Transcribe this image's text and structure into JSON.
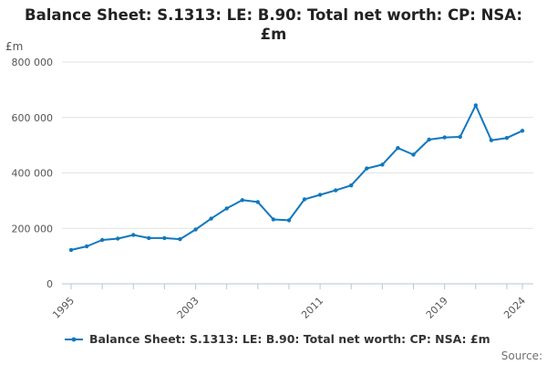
{
  "title": {
    "line1": "Balance Sheet: S.1313: LE: B.90: Total net worth: CP: NSA:",
    "line2": "£m"
  },
  "y_axis": {
    "unit_label": "£m",
    "ticks": [
      {
        "value": 0,
        "label": "0"
      },
      {
        "value": 200000,
        "label": "200 000"
      },
      {
        "value": 400000,
        "label": "400 000"
      },
      {
        "value": 600000,
        "label": "600 000"
      },
      {
        "value": 800000,
        "label": "800 000"
      }
    ]
  },
  "x_axis": {
    "tick_interval_years": 2,
    "labeled_years": [
      1995,
      2003,
      2011,
      2019,
      2024
    ]
  },
  "legend": {
    "label": "Balance Sheet: S.1313: LE: B.90: Total net worth: CP: NSA: £m",
    "marker": "line-with-dot"
  },
  "source": {
    "label": "Source:"
  },
  "colors": {
    "line": "#1178be",
    "grid": "#e2e2e2",
    "axis": "#b9c4d6",
    "title_text": "#222222",
    "tick_text": "#555555",
    "source_text": "#707070"
  },
  "chart_data": {
    "type": "line",
    "title": "Balance Sheet: S.1313: LE: B.90: Total net worth: CP: NSA: £m",
    "xlabel": "",
    "ylabel": "£m",
    "ylim": [
      0,
      800000
    ],
    "xlim": [
      1995,
      2024
    ],
    "grid": true,
    "legend_position": "bottom",
    "x": [
      1995,
      1996,
      1997,
      1998,
      1999,
      2000,
      2001,
      2002,
      2003,
      2004,
      2005,
      2006,
      2007,
      2008,
      2009,
      2010,
      2011,
      2012,
      2013,
      2014,
      2015,
      2016,
      2017,
      2018,
      2019,
      2020,
      2021,
      2022,
      2023,
      2024
    ],
    "series": [
      {
        "name": "Balance Sheet: S.1313: LE: B.90: Total net worth: CP: NSA: £m",
        "values": [
          122000,
          135000,
          158000,
          163000,
          176000,
          165000,
          165000,
          161000,
          196000,
          235000,
          272000,
          302000,
          295000,
          232000,
          229000,
          305000,
          321000,
          337000,
          355000,
          416000,
          430000,
          490000,
          466000,
          520000,
          528000,
          530000,
          644000,
          518000,
          526000,
          552000
        ]
      }
    ]
  }
}
